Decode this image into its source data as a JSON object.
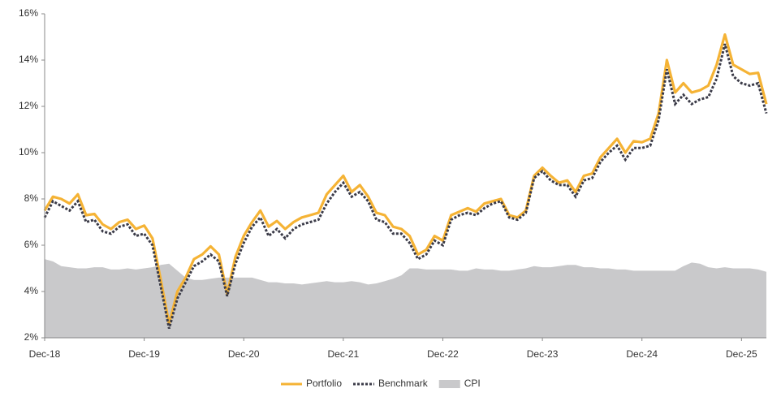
{
  "chart_data": {
    "type": "line",
    "categories": [
      "Dec-18",
      null,
      null,
      null,
      null,
      null,
      null,
      null,
      null,
      null,
      null,
      null,
      "Dec-19",
      null,
      null,
      null,
      null,
      null,
      null,
      null,
      null,
      null,
      null,
      null,
      "Dec-20",
      null,
      null,
      null,
      null,
      null,
      null,
      null,
      null,
      null,
      null,
      null,
      "Dec-21",
      null,
      null,
      null,
      null,
      null,
      null,
      null,
      null,
      null,
      null,
      null,
      "Dec-22",
      null,
      null,
      null,
      null,
      null,
      null,
      null,
      null,
      null,
      null,
      null,
      "Dec-23",
      null,
      null,
      null,
      null,
      null,
      null,
      null,
      null,
      null,
      null,
      null,
      "Dec-24",
      null,
      null,
      null,
      null,
      null,
      null,
      null,
      null,
      null,
      null,
      null,
      "Dec-25",
      null,
      null,
      null
    ],
    "series": [
      {
        "name": "Portfolio",
        "color": "#f5b335",
        "style": "solid",
        "values": [
          7.5,
          8.1,
          8.0,
          7.8,
          8.2,
          7.3,
          7.35,
          6.9,
          6.7,
          7.0,
          7.1,
          6.7,
          6.85,
          6.3,
          4.5,
          2.6,
          4.0,
          4.6,
          5.4,
          5.6,
          5.95,
          5.6,
          3.9,
          5.5,
          6.4,
          7.0,
          7.5,
          6.8,
          7.05,
          6.7,
          7.0,
          7.2,
          7.3,
          7.4,
          8.2,
          8.6,
          9.0,
          8.3,
          8.6,
          8.1,
          7.4,
          7.3,
          6.8,
          6.7,
          6.4,
          5.6,
          5.8,
          6.4,
          6.2,
          7.3,
          7.45,
          7.6,
          7.45,
          7.8,
          7.9,
          8.0,
          7.3,
          7.2,
          7.5,
          9.0,
          9.35,
          9.0,
          8.7,
          8.8,
          8.3,
          9.0,
          9.1,
          9.8,
          10.2,
          10.6,
          10.0,
          10.5,
          10.45,
          10.6,
          11.7,
          14.0,
          12.6,
          13.0,
          12.6,
          12.7,
          12.9,
          13.8,
          15.1,
          13.8,
          13.6,
          13.4,
          13.45,
          12.1
        ]
      },
      {
        "name": "Benchmark",
        "color": "#3b3b48",
        "style": "dotted",
        "values": [
          7.2,
          7.9,
          7.7,
          7.5,
          7.9,
          7.0,
          7.1,
          6.6,
          6.5,
          6.8,
          6.9,
          6.4,
          6.5,
          6.0,
          4.2,
          2.4,
          3.7,
          4.4,
          5.1,
          5.3,
          5.6,
          5.3,
          3.8,
          5.2,
          6.1,
          6.8,
          7.2,
          6.4,
          6.7,
          6.3,
          6.7,
          6.9,
          7.0,
          7.1,
          7.8,
          8.3,
          8.7,
          8.1,
          8.3,
          7.9,
          7.1,
          7.0,
          6.5,
          6.5,
          6.1,
          5.4,
          5.6,
          6.2,
          6.0,
          7.1,
          7.3,
          7.4,
          7.3,
          7.6,
          7.8,
          7.9,
          7.2,
          7.1,
          7.4,
          8.9,
          9.2,
          8.8,
          8.6,
          8.6,
          8.1,
          8.8,
          8.9,
          9.6,
          10.0,
          10.3,
          9.7,
          10.2,
          10.2,
          10.3,
          11.4,
          13.6,
          12.1,
          12.5,
          12.1,
          12.3,
          12.4,
          13.2,
          14.7,
          13.3,
          13.0,
          12.9,
          13.0,
          11.7
        ]
      },
      {
        "name": "CPI",
        "color": "#c9c9cb",
        "style": "area",
        "values": [
          5.4,
          5.3,
          5.1,
          5.05,
          5.0,
          5.0,
          5.05,
          5.05,
          4.95,
          4.95,
          5.0,
          4.95,
          5.0,
          5.05,
          5.15,
          5.2,
          4.9,
          4.6,
          4.5,
          4.5,
          4.55,
          4.6,
          4.6,
          4.6,
          4.6,
          4.6,
          4.5,
          4.4,
          4.4,
          4.35,
          4.35,
          4.3,
          4.35,
          4.4,
          4.45,
          4.4,
          4.4,
          4.45,
          4.4,
          4.3,
          4.35,
          4.45,
          4.55,
          4.7,
          5.0,
          5.0,
          4.95,
          4.95,
          4.95,
          4.95,
          4.9,
          4.9,
          5.0,
          4.95,
          4.95,
          4.9,
          4.9,
          4.95,
          5.0,
          5.1,
          5.05,
          5.05,
          5.1,
          5.15,
          5.15,
          5.05,
          5.05,
          5.0,
          5.0,
          4.95,
          4.95,
          4.9,
          4.9,
          4.9,
          4.9,
          4.9,
          4.9,
          5.1,
          5.25,
          5.2,
          5.05,
          5.0,
          5.05,
          5.0,
          5.0,
          5.0,
          4.95,
          4.85
        ]
      }
    ],
    "ylim": [
      2,
      16
    ],
    "yticks": [
      {
        "value": 2,
        "label": "2%"
      },
      {
        "value": 4,
        "label": "4%"
      },
      {
        "value": 6,
        "label": "6%"
      },
      {
        "value": 8,
        "label": "8%"
      },
      {
        "value": 10,
        "label": "10%"
      },
      {
        "value": 12,
        "label": "12%"
      },
      {
        "value": 14,
        "label": "14%"
      },
      {
        "value": 16,
        "label": "16%"
      }
    ],
    "grid": false,
    "legend": "bottom"
  }
}
